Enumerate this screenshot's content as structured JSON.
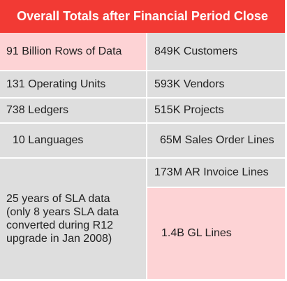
{
  "title": "Overall Totals after Financial Period Close",
  "colors": {
    "header": "#f23a34",
    "cell": "#dedede",
    "highlight": "#fdd3d5"
  },
  "left_column": [
    "91 Billion Rows of Data",
    "131 Operating Units",
    "738 Ledgers",
    "10 Languages",
    "25 years of SLA data\n(only 8 years SLA data\nconverted during R12\nupgrade in Jan 2008)"
  ],
  "right_column": [
    "849K Customers",
    "593K Vendors",
    "515K Projects",
    "65M Sales Order Lines",
    "173M AR Invoice Lines",
    "1.4B GL Lines"
  ]
}
